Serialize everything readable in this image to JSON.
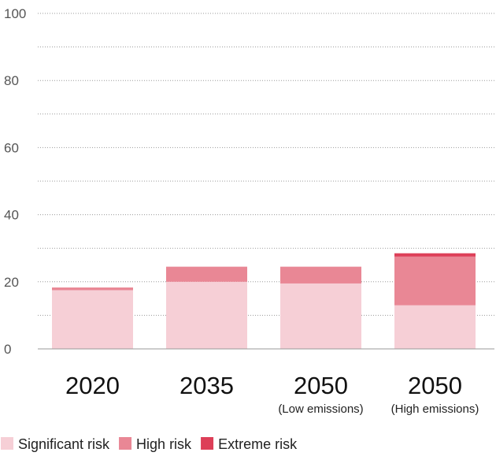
{
  "chart_data": {
    "type": "bar",
    "stacked": true,
    "categories": [
      {
        "year": "2020",
        "sub": ""
      },
      {
        "year": "2035",
        "sub": ""
      },
      {
        "year": "2050",
        "sub": "(Low emissions)"
      },
      {
        "year": "2050",
        "sub": "(High emissions)"
      }
    ],
    "series": [
      {
        "name": "Significant risk",
        "color": "#f6cfd6",
        "values": [
          17.5,
          20,
          19.5,
          13
        ]
      },
      {
        "name": "High risk",
        "color": "#e98795",
        "values": [
          0.8,
          4.5,
          5,
          14.5
        ]
      },
      {
        "name": "Extreme risk",
        "color": "#dd3f58",
        "values": [
          0,
          0,
          0,
          1
        ]
      }
    ],
    "ylim": [
      0,
      100
    ],
    "yticks": [
      0,
      20,
      40,
      60,
      80,
      100
    ],
    "grid": true,
    "grid_style": "dotted",
    "legend_position": "bottom-left"
  }
}
